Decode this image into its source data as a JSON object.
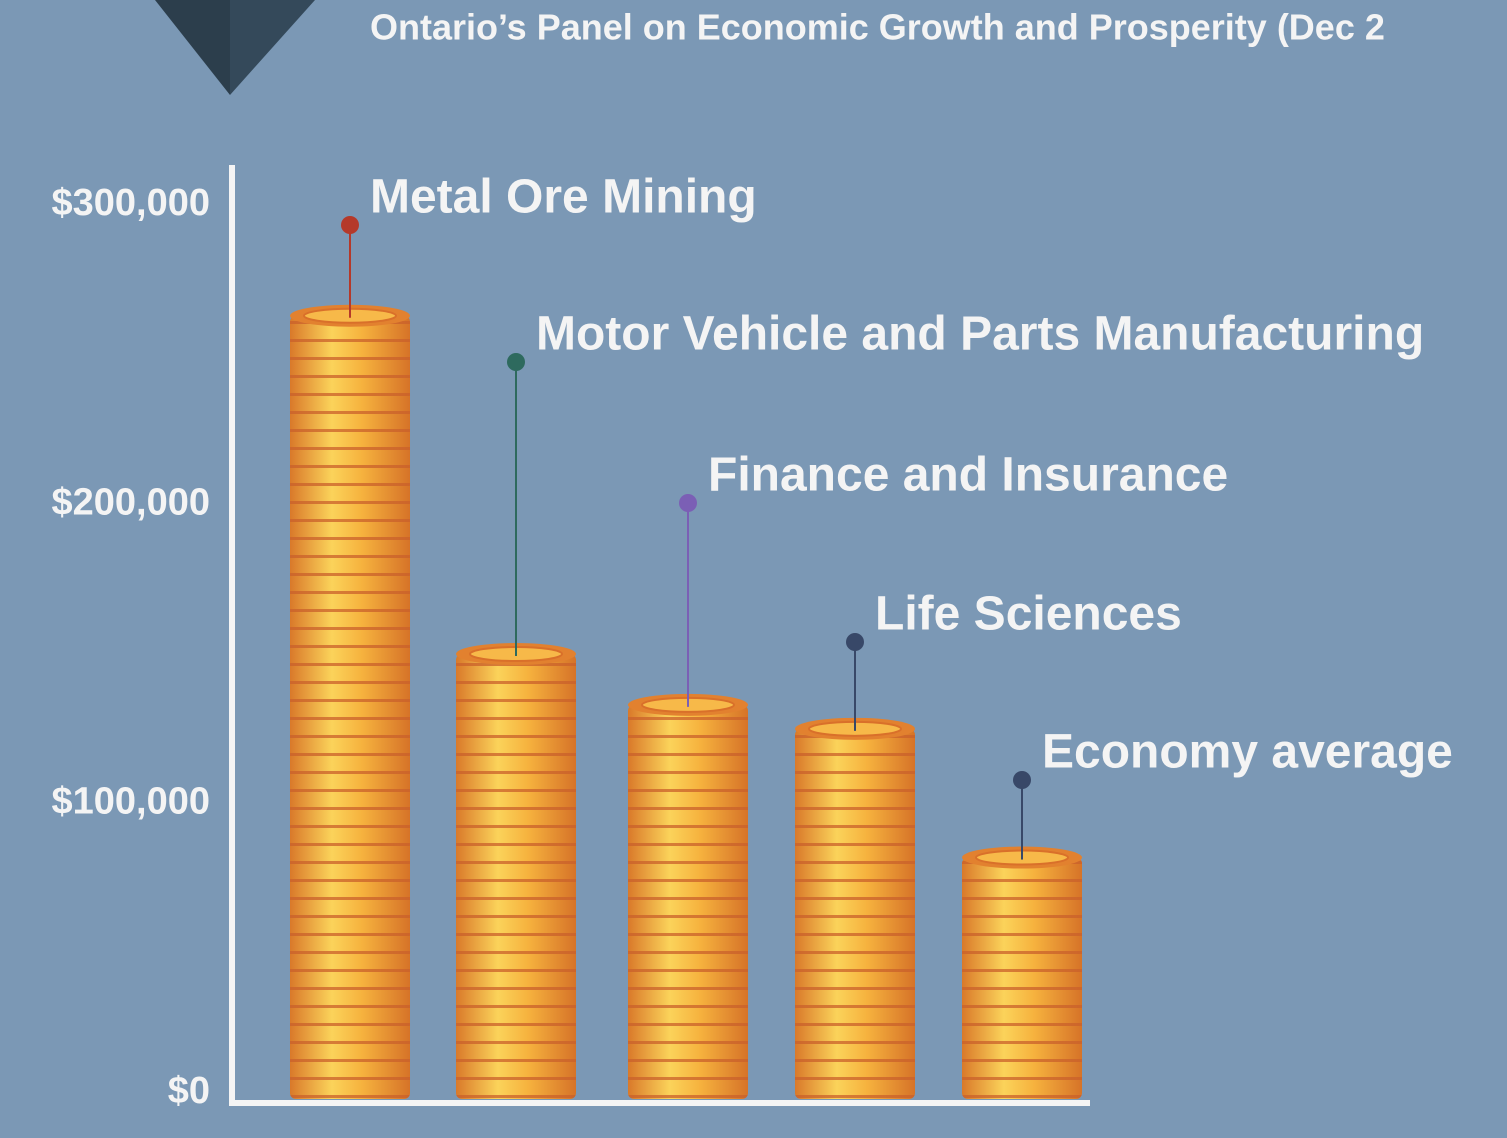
{
  "chart_data": {
    "type": "bar",
    "title": "Ontario’s Panel on Economic Growth and Prosperity (Dec 2",
    "categories": [
      "Metal Ore Mining",
      "Motor Vehicle and Parts Manufacturing",
      "Finance and Insurance",
      "Life Sciences",
      "Economy average"
    ],
    "values": [
      263000,
      150000,
      133000,
      125000,
      82000
    ],
    "color": "#f2a93b",
    "label_colors": [
      "#b5392a",
      "#2e6a5e",
      "#7b5fb5",
      "#384868",
      "#384868"
    ],
    "ylim": [
      0,
      300000
    ],
    "yticks": [
      {
        "value": 0,
        "label": "$0"
      },
      {
        "value": 100000,
        "label": "$100,000"
      },
      {
        "value": 200000,
        "label": "$200,000"
      },
      {
        "value": 300000,
        "label": "$300,000"
      }
    ]
  }
}
